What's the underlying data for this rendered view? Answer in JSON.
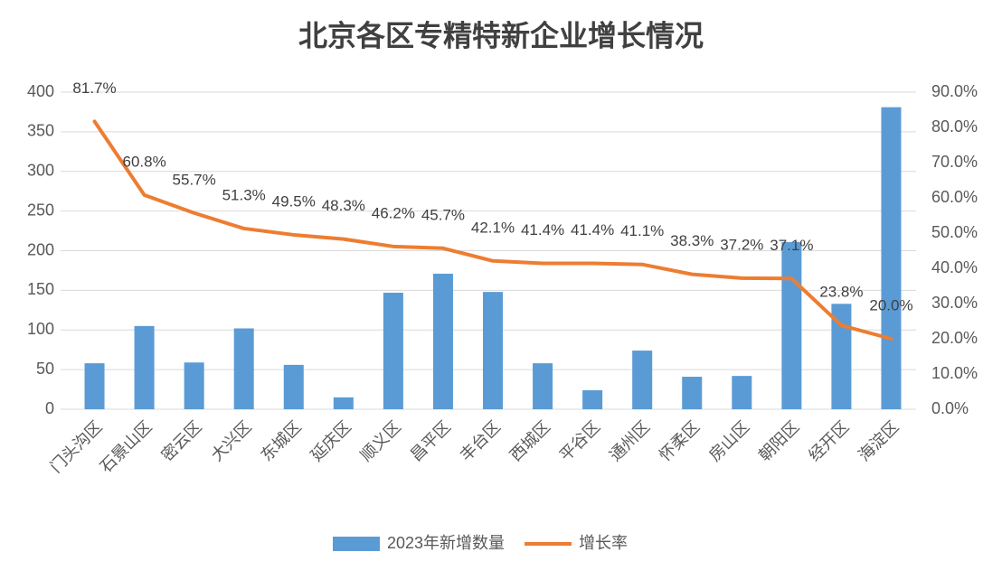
{
  "chart_data": {
    "type": "bar",
    "title": "北京各区专精特新企业增长情况",
    "categories": [
      "门头沟区",
      "石景山区",
      "密云区",
      "大兴区",
      "东城区",
      "延庆区",
      "顺义区",
      "昌平区",
      "丰台区",
      "西城区",
      "平谷区",
      "通州区",
      "怀柔区",
      "房山区",
      "朝阳区",
      "经开区",
      "海淀区"
    ],
    "series": [
      {
        "name": "2023年新增数量",
        "type": "bar",
        "color": "#5b9bd5",
        "values": [
          58,
          105,
          59,
          102,
          56,
          15,
          147,
          171,
          148,
          58,
          24,
          74,
          41,
          42,
          211,
          133,
          381
        ]
      },
      {
        "name": "增长率",
        "type": "line",
        "axis": "y2",
        "color": "#ed7d31",
        "values": [
          81.7,
          60.8,
          55.7,
          51.3,
          49.5,
          48.3,
          46.2,
          45.7,
          42.1,
          41.4,
          41.4,
          41.1,
          38.3,
          37.2,
          37.1,
          23.8,
          20.0
        ],
        "value_labels": [
          "81.7%",
          "60.8%",
          "55.7%",
          "51.3%",
          "49.5%",
          "48.3%",
          "46.2%",
          "45.7%",
          "42.1%",
          "41.4%",
          "41.4%",
          "41.1%",
          "38.3%",
          "37.2%",
          "37.1%",
          "23.8%",
          "20.0%"
        ]
      }
    ],
    "ylim": [
      0,
      400
    ],
    "yticks": [
      0,
      50,
      100,
      150,
      200,
      250,
      300,
      350,
      400
    ],
    "y2lim": [
      0,
      90
    ],
    "y2ticks": [
      {
        "value": 0,
        "label": "0.0%"
      },
      {
        "value": 10,
        "label": "10.0%"
      },
      {
        "value": 20,
        "label": "20.0%"
      },
      {
        "value": 30,
        "label": "30.0%"
      },
      {
        "value": 40,
        "label": "40.0%"
      },
      {
        "value": 50,
        "label": "50.0%"
      },
      {
        "value": 60,
        "label": "60.0%"
      },
      {
        "value": 70,
        "label": "70.0%"
      },
      {
        "value": 80,
        "label": "80.0%"
      },
      {
        "value": 90,
        "label": "90.0%"
      }
    ],
    "grid": true,
    "legend": "bottom"
  }
}
